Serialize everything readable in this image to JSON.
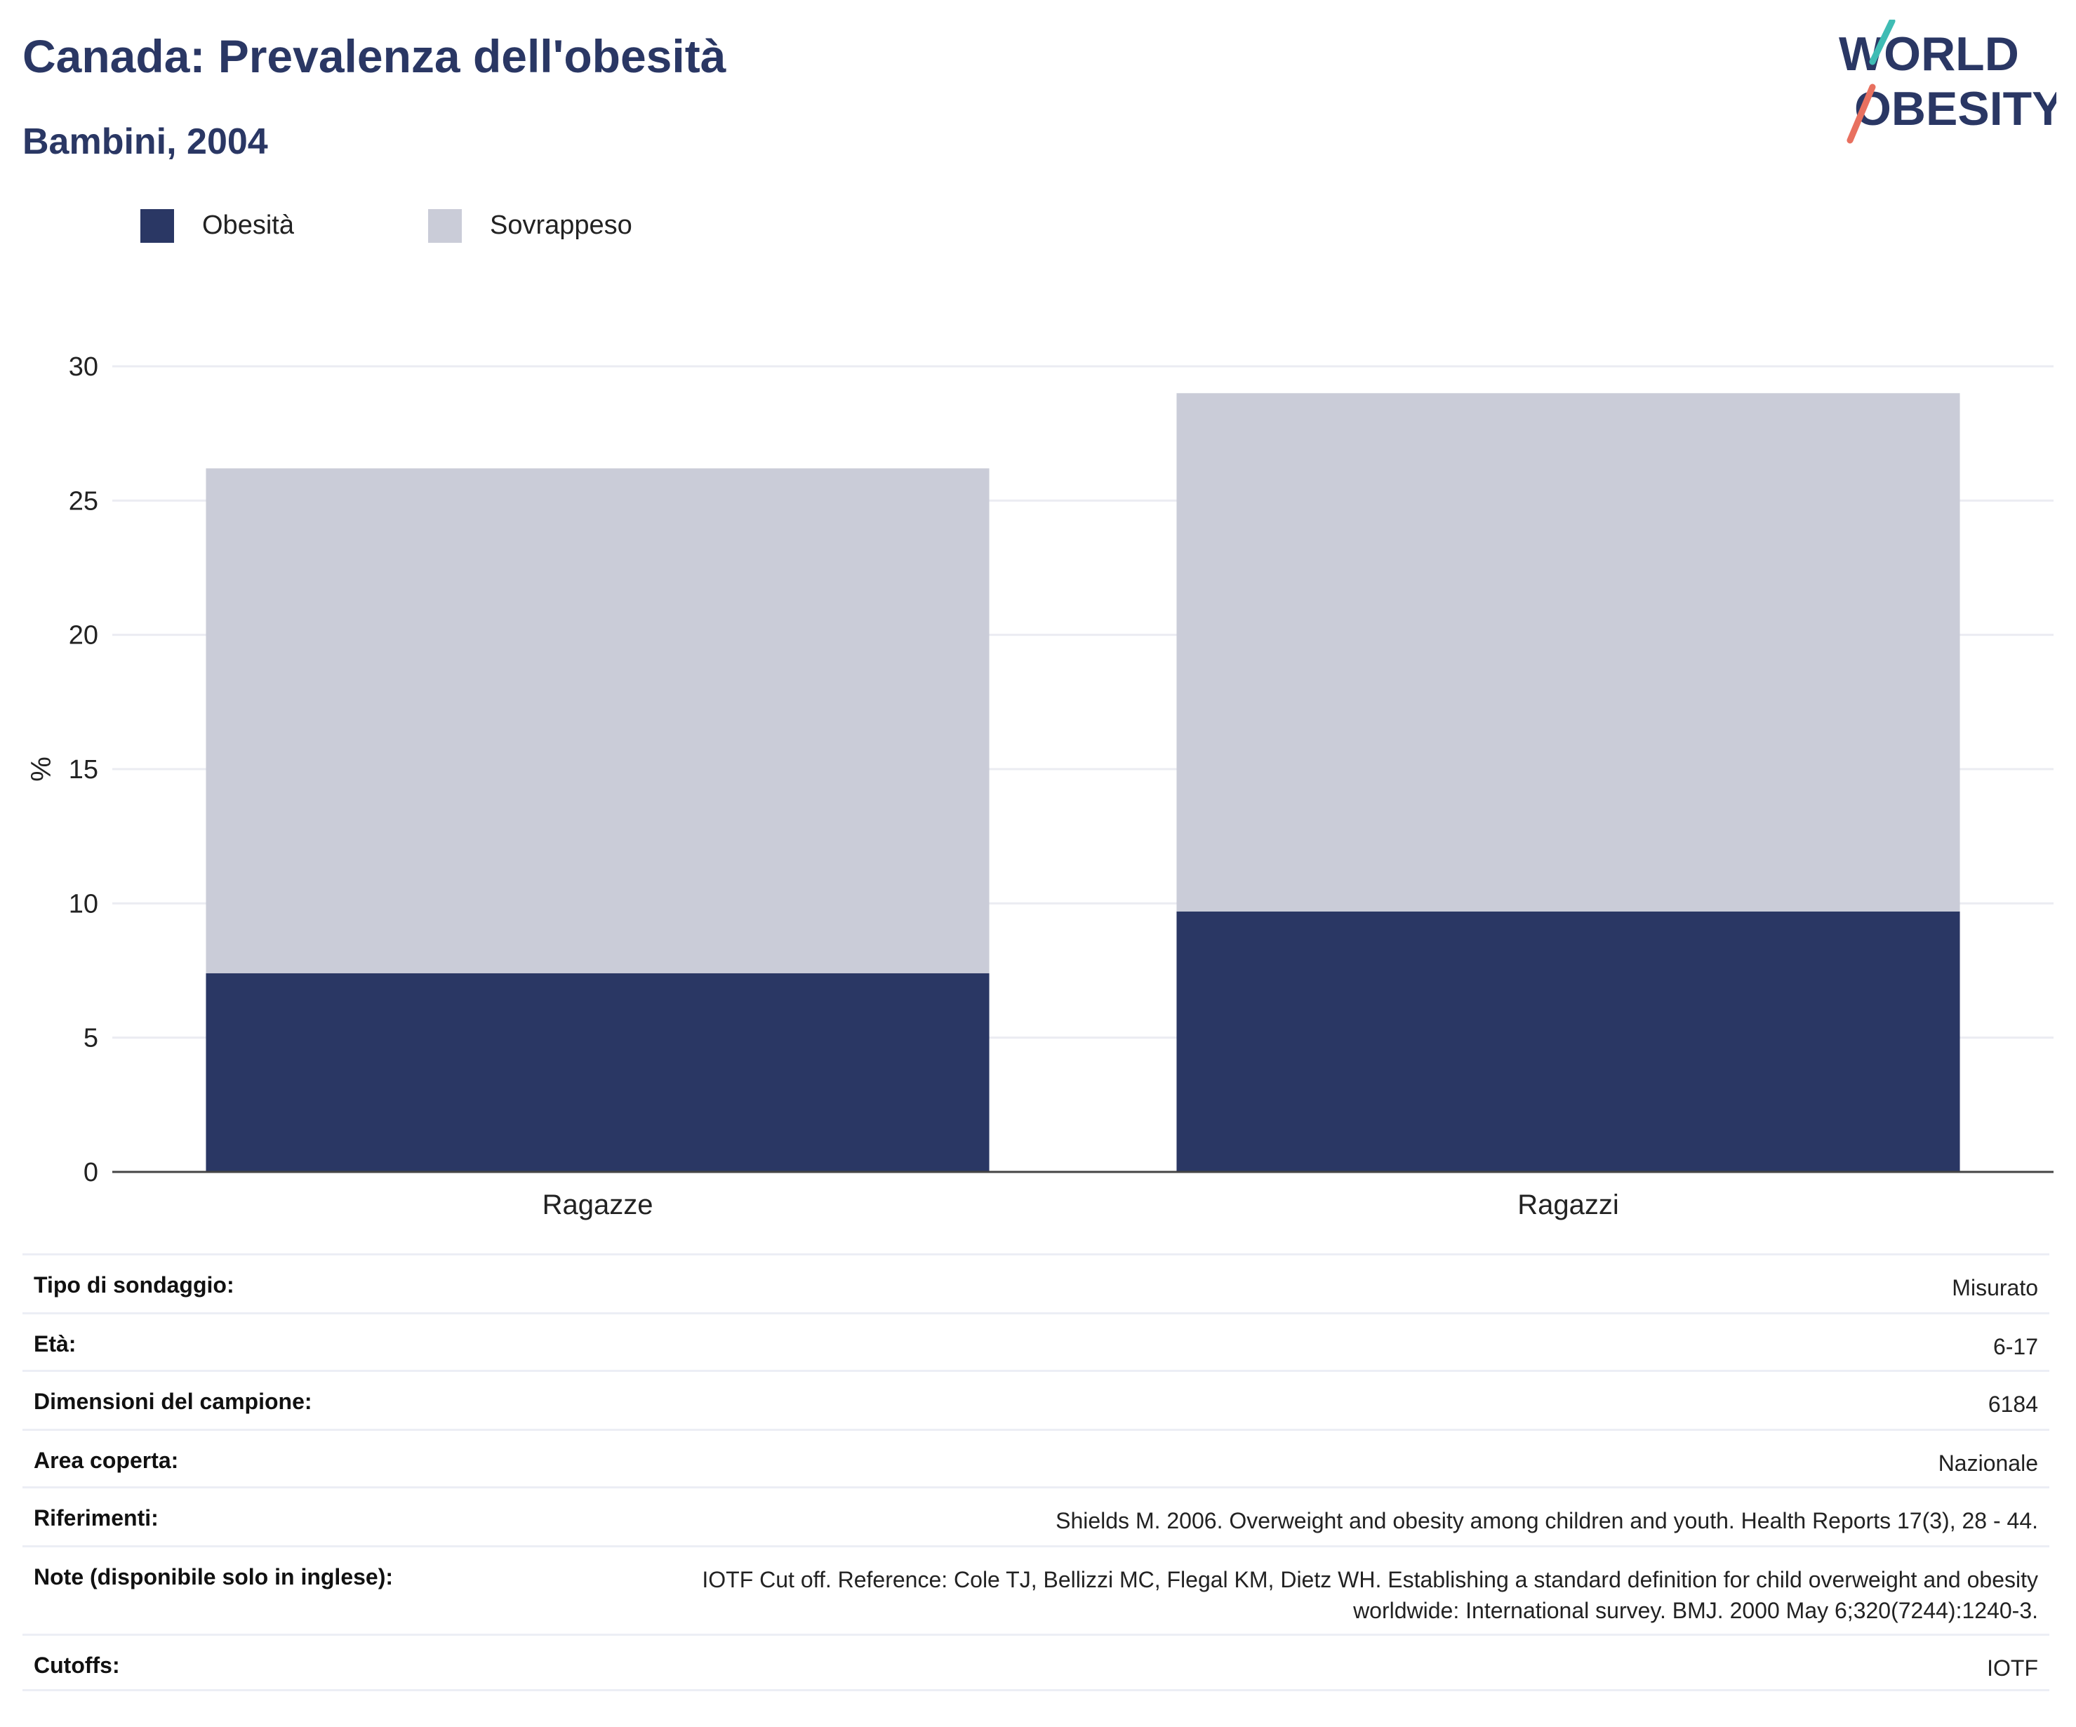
{
  "header": {
    "title": "Canada: Prevalenza dell'obesità",
    "subtitle": "Bambini, 2004"
  },
  "logo": {
    "line1": "WORLD",
    "line2": "OBESITY"
  },
  "chart_data": {
    "type": "bar",
    "stacked": true,
    "categories": [
      "Ragazze",
      "Ragazzi"
    ],
    "series": [
      {
        "name": "Obesità",
        "values": [
          7.4,
          9.7
        ],
        "color": "#2a3764"
      },
      {
        "name": "Sovrappeso",
        "values": [
          18.8,
          19.3
        ],
        "color": "#caccd8"
      }
    ],
    "ylabel": "%",
    "xlabel": "",
    "ylim": [
      0,
      30
    ],
    "yticks": [
      0,
      5,
      10,
      15,
      20,
      25,
      30
    ],
    "grid": true,
    "legend_position": "top-left"
  },
  "info": {
    "rows": [
      {
        "label": "Tipo di sondaggio:",
        "value": "Misurato"
      },
      {
        "label": "Età:",
        "value": "6-17"
      },
      {
        "label": "Dimensioni del campione:",
        "value": "6184"
      },
      {
        "label": "Area coperta:",
        "value": "Nazionale"
      },
      {
        "label": "Riferimenti:",
        "value": "Shields M. 2006. Overweight and obesity among children and youth. Health Reports 17(3), 28 - 44."
      },
      {
        "label": "Note (disponibile solo in inglese):",
        "value_lines": [
          "IOTF Cut off. Reference: Cole TJ, Bellizzi MC, Flegal KM, Dietz WH. Establishing a standard definition for child overweight and obesity",
          "worldwide: International survey. BMJ. 2000 May 6;320(7244):1240-3."
        ]
      },
      {
        "label": "Cutoffs:",
        "value": "IOTF"
      }
    ]
  }
}
